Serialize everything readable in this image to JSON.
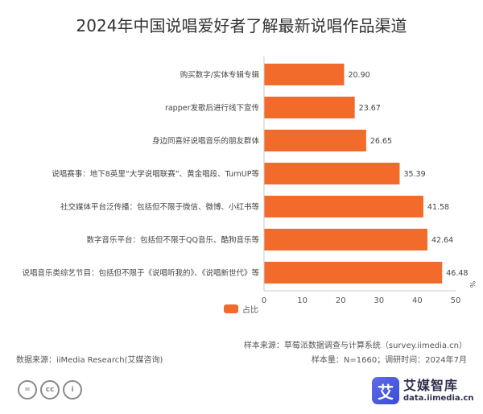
{
  "chart_data": {
    "type": "bar",
    "orientation": "horizontal",
    "title": "2024年中国说唱爱好者了解最新说唱作品渠道",
    "categories": [
      "购买数字/实体专辑专辑",
      "rapper发歌后进行线下宣传",
      "身边同喜好说唱音乐的朋友群体",
      "说唱赛事：地下8英里“大学说唱联赛”、黄金唱段、TurnUP等",
      "社交媒体平台泛传播：包括但不限于微信、微博、小红书等",
      "数字音乐平台：包括但不限于QQ音乐、酷狗音乐等",
      "说唱音乐类综艺节目：包括但不限于《说唱听我的》、《说唱新世代》等"
    ],
    "series": [
      {
        "name": "占比",
        "values": [
          20.9,
          23.67,
          26.65,
          35.39,
          41.58,
          42.64,
          46.48
        ]
      }
    ],
    "value_labels": [
      "20.90",
      "23.67",
      "26.65",
      "35.39",
      "41.58",
      "42.64",
      "46.48"
    ],
    "xlim": [
      0,
      50
    ],
    "xticks": [
      "0",
      "10",
      "20",
      "30",
      "40",
      "50"
    ],
    "unit": "%",
    "legend_position": "bottom",
    "grid": false,
    "bar_color": "#f26b2b"
  },
  "notes": {
    "sample_source": "样本来源：草莓派数据调查与计算系统（survey.iimedia.cn）",
    "data_source": "数据来源：iiMedia Research(艾媒咨询)",
    "sample_info": "样本量：N=1660；调研时间：2024年7月"
  },
  "logo": {
    "mark": "艾",
    "name": "艾媒智库",
    "url": "data.iimedia.cn",
    "accent": "#4b5be0"
  },
  "license_icons": [
    "=",
    "cc",
    "i"
  ]
}
